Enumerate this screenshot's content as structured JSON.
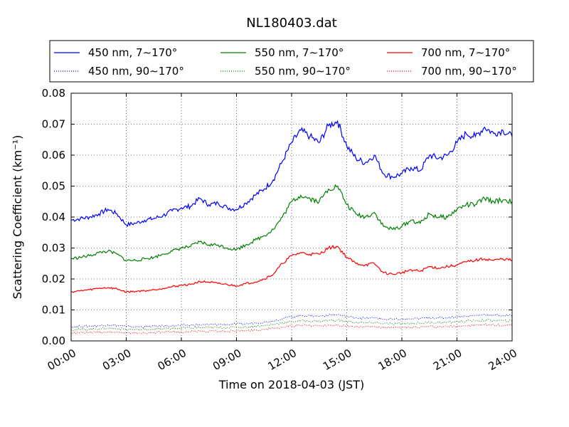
{
  "chart_data": {
    "type": "line",
    "title": "NL180403.dat",
    "xlabel": "Time on 2018-04-03 (JST)",
    "ylabel": "Scattering Coefficient (km⁻¹)",
    "xlim": [
      0,
      24
    ],
    "ylim": [
      0,
      0.08
    ],
    "x_ticks": [
      0,
      3,
      6,
      9,
      12,
      15,
      18,
      21,
      24
    ],
    "x_tick_labels": [
      "00:00",
      "03:00",
      "06:00",
      "09:00",
      "12:00",
      "15:00",
      "18:00",
      "21:00",
      "24:00"
    ],
    "y_ticks": [
      0,
      0.01,
      0.02,
      0.03,
      0.04,
      0.05,
      0.06,
      0.07,
      0.08
    ],
    "y_tick_labels": [
      "0.00",
      "0.01",
      "0.02",
      "0.03",
      "0.04",
      "0.05",
      "0.06",
      "0.07",
      "0.08"
    ],
    "grid": true,
    "legend_position": "top",
    "x": [
      0,
      0.5,
      1,
      1.5,
      2,
      2.5,
      3,
      3.5,
      4,
      4.5,
      5,
      5.5,
      6,
      6.5,
      7,
      7.5,
      8,
      8.5,
      9,
      9.5,
      10,
      10.5,
      11,
      11.5,
      12,
      12.5,
      13,
      13.5,
      14,
      14.5,
      15,
      15.5,
      16,
      16.5,
      17,
      17.5,
      18,
      18.5,
      19,
      19.5,
      20,
      20.5,
      21,
      21.5,
      22,
      22.5,
      23,
      23.5,
      24
    ],
    "series": [
      {
        "name": "450 nm, 7∼170°",
        "color": "#0000ff",
        "style": "solid",
        "values": [
          0.039,
          0.0395,
          0.04,
          0.041,
          0.0425,
          0.041,
          0.0375,
          0.038,
          0.039,
          0.0395,
          0.0405,
          0.042,
          0.043,
          0.0435,
          0.046,
          0.044,
          0.0445,
          0.043,
          0.0425,
          0.0445,
          0.047,
          0.049,
          0.052,
          0.058,
          0.064,
          0.068,
          0.066,
          0.064,
          0.0695,
          0.071,
          0.063,
          0.059,
          0.0575,
          0.06,
          0.054,
          0.053,
          0.054,
          0.056,
          0.055,
          0.06,
          0.059,
          0.06,
          0.064,
          0.067,
          0.066,
          0.069,
          0.067,
          0.068,
          0.066
        ]
      },
      {
        "name": "450 nm, 90∼170°",
        "color": "#0000ff",
        "style": "dotted",
        "values": [
          0.0045,
          0.0047,
          0.0048,
          0.0049,
          0.0052,
          0.005,
          0.0047,
          0.0045,
          0.0046,
          0.0047,
          0.0048,
          0.0049,
          0.005,
          0.0051,
          0.0052,
          0.0052,
          0.0053,
          0.0053,
          0.0054,
          0.0055,
          0.0058,
          0.006,
          0.0065,
          0.0072,
          0.0078,
          0.0082,
          0.0081,
          0.008,
          0.0083,
          0.0085,
          0.0078,
          0.0075,
          0.0073,
          0.0075,
          0.007,
          0.0069,
          0.007,
          0.0071,
          0.0072,
          0.0075,
          0.0074,
          0.0075,
          0.0078,
          0.008,
          0.0082,
          0.0085,
          0.0083,
          0.0082,
          0.0081
        ]
      },
      {
        "name": "550 nm, 7∼170°",
        "color": "#008000",
        "style": "solid",
        "values": [
          0.0265,
          0.027,
          0.0275,
          0.0285,
          0.029,
          0.028,
          0.026,
          0.026,
          0.0265,
          0.027,
          0.028,
          0.029,
          0.03,
          0.0305,
          0.032,
          0.031,
          0.031,
          0.03,
          0.0295,
          0.031,
          0.0325,
          0.034,
          0.036,
          0.04,
          0.045,
          0.047,
          0.046,
          0.045,
          0.049,
          0.05,
          0.044,
          0.041,
          0.04,
          0.0415,
          0.037,
          0.036,
          0.037,
          0.039,
          0.038,
          0.041,
          0.04,
          0.04,
          0.0425,
          0.044,
          0.044,
          0.046,
          0.045,
          0.0455,
          0.045
        ]
      },
      {
        "name": "550 nm, 90∼170°",
        "color": "#008000",
        "style": "dotted",
        "values": [
          0.0036,
          0.0037,
          0.0038,
          0.0039,
          0.0041,
          0.004,
          0.0037,
          0.0036,
          0.0037,
          0.0038,
          0.0039,
          0.004,
          0.0041,
          0.0042,
          0.0043,
          0.0043,
          0.0043,
          0.0043,
          0.0044,
          0.0045,
          0.0047,
          0.0049,
          0.0053,
          0.0058,
          0.0062,
          0.0065,
          0.0064,
          0.0064,
          0.0066,
          0.0067,
          0.0062,
          0.006,
          0.0058,
          0.006,
          0.0056,
          0.0055,
          0.0056,
          0.0057,
          0.0057,
          0.006,
          0.0059,
          0.006,
          0.0062,
          0.0064,
          0.0065,
          0.0067,
          0.0066,
          0.0065,
          0.0064
        ]
      },
      {
        "name": "700 nm, 7∼170°",
        "color": "#ff0000",
        "style": "solid",
        "values": [
          0.0158,
          0.0162,
          0.0165,
          0.017,
          0.0172,
          0.0168,
          0.0158,
          0.016,
          0.0162,
          0.0165,
          0.017,
          0.0175,
          0.018,
          0.0182,
          0.0192,
          0.019,
          0.0185,
          0.0182,
          0.0178,
          0.0185,
          0.019,
          0.02,
          0.0215,
          0.025,
          0.0275,
          0.0285,
          0.028,
          0.028,
          0.03,
          0.0305,
          0.027,
          0.025,
          0.0245,
          0.025,
          0.022,
          0.0215,
          0.022,
          0.023,
          0.0225,
          0.024,
          0.0235,
          0.024,
          0.0245,
          0.0255,
          0.026,
          0.0265,
          0.026,
          0.0265,
          0.026
        ]
      },
      {
        "name": "700 nm, 90∼170°",
        "color": "#ff0000",
        "style": "dotted",
        "values": [
          0.0025,
          0.0026,
          0.0027,
          0.0028,
          0.0029,
          0.0028,
          0.0026,
          0.0025,
          0.0026,
          0.0027,
          0.0028,
          0.0028,
          0.0029,
          0.003,
          0.0031,
          0.0031,
          0.0031,
          0.0031,
          0.0032,
          0.0033,
          0.0035,
          0.0037,
          0.004,
          0.0044,
          0.0048,
          0.005,
          0.005,
          0.0049,
          0.0051,
          0.0052,
          0.0048,
          0.0046,
          0.0045,
          0.0046,
          0.0043,
          0.0042,
          0.0043,
          0.0044,
          0.0044,
          0.0046,
          0.0045,
          0.0046,
          0.0048,
          0.0049,
          0.005,
          0.0052,
          0.0051,
          0.005,
          0.005
        ]
      }
    ],
    "legend_order": [
      0,
      2,
      4,
      1,
      3,
      5
    ]
  }
}
